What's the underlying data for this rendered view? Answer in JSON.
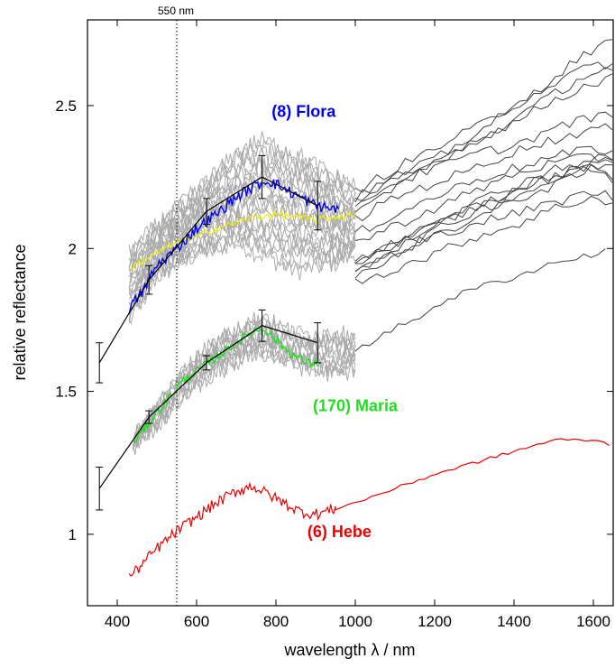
{
  "chart_data": {
    "type": "line",
    "xlabel": "wavelength λ / nm",
    "ylabel": "relative reflectance",
    "xlim": [
      325,
      1650
    ],
    "ylim": [
      0.75,
      2.8
    ],
    "xticks": [
      {
        "value": 400,
        "label": "400"
      },
      {
        "value": 600,
        "label": "600"
      },
      {
        "value": 800,
        "label": "800"
      },
      {
        "value": 1000,
        "label": "1000"
      },
      {
        "value": 1200,
        "label": "1200"
      },
      {
        "value": 1400,
        "label": "1400"
      },
      {
        "value": 1600,
        "label": "1600"
      }
    ],
    "yticks": [
      {
        "value": 1,
        "label": "1"
      },
      {
        "value": 1.5,
        "label": "1.5"
      },
      {
        "value": 2,
        "label": "2"
      },
      {
        "value": 2.5,
        "label": "2.5"
      }
    ],
    "reference_line": {
      "x": 550,
      "label": "550 nm"
    },
    "annotations": [
      {
        "text": "(8) Flora",
        "x": 870,
        "y": 2.46,
        "color": "#0000ee"
      },
      {
        "text": "(170) Maria",
        "x": 1000,
        "y": 1.43,
        "color": "#22dd22"
      },
      {
        "text": "(6) Hebe",
        "x": 960,
        "y": 0.99,
        "color": "#ee0000"
      }
    ],
    "colors": {
      "flora": "#0000ee",
      "maria": "#22dd22",
      "hebe": "#ee0000",
      "yellow": "#eeee00",
      "family": "#aaaaaa",
      "nir": "#444444",
      "photometry": "#000000"
    },
    "flora_family_band": {
      "x": [
        430,
        500,
        600,
        700,
        760,
        850,
        950,
        1000
      ],
      "low": [
        1.74,
        1.9,
        1.98,
        2.02,
        1.98,
        1.92,
        1.95,
        1.98
      ],
      "high": [
        1.98,
        2.08,
        2.2,
        2.33,
        2.38,
        2.33,
        2.25,
        2.22
      ]
    },
    "maria_family_band": {
      "x": [
        440,
        500,
        600,
        700,
        760,
        850,
        950,
        1000
      ],
      "low": [
        1.3,
        1.38,
        1.52,
        1.6,
        1.64,
        1.59,
        1.56,
        1.58
      ],
      "high": [
        1.34,
        1.45,
        1.63,
        1.72,
        1.76,
        1.7,
        1.7,
        1.69
      ]
    },
    "flora_photometry": [
      {
        "x": 355,
        "y": 1.6,
        "err": 0.07
      },
      {
        "x": 480,
        "y": 1.89,
        "err": 0.05
      },
      {
        "x": 625,
        "y": 2.13,
        "err": 0.045
      },
      {
        "x": 765,
        "y": 2.25,
        "err": 0.075
      },
      {
        "x": 905,
        "y": 2.15,
        "err": 0.085
      }
    ],
    "maria_photometry": [
      {
        "x": 355,
        "y": 1.16,
        "err": 0.075
      },
      {
        "x": 480,
        "y": 1.41,
        "err": 0.022
      },
      {
        "x": 625,
        "y": 1.6,
        "err": 0.025
      },
      {
        "x": 765,
        "y": 1.73,
        "err": 0.055
      },
      {
        "x": 905,
        "y": 1.67,
        "err": 0.07
      }
    ],
    "flora_spectrum": {
      "x": [
        430,
        460,
        500,
        550,
        600,
        650,
        700,
        750,
        780,
        820,
        860,
        900,
        940,
        960
      ],
      "y": [
        1.79,
        1.84,
        1.94,
        2.0,
        2.07,
        2.12,
        2.18,
        2.22,
        2.24,
        2.21,
        2.18,
        2.15,
        2.14,
        2.14
      ]
    },
    "yellow_spectrum": {
      "x": [
        430,
        480,
        550,
        600,
        650,
        700,
        750,
        800,
        850,
        900,
        950,
        1000
      ],
      "y": [
        1.93,
        1.97,
        2.02,
        2.04,
        2.07,
        2.09,
        2.11,
        2.12,
        2.11,
        2.1,
        2.11,
        2.12
      ]
    },
    "maria_spectrum": {
      "x": [
        440,
        480,
        520,
        560,
        600,
        650,
        700,
        740,
        770,
        800,
        840,
        880,
        910
      ],
      "y": [
        1.32,
        1.39,
        1.46,
        1.53,
        1.57,
        1.62,
        1.67,
        1.71,
        1.72,
        1.68,
        1.63,
        1.6,
        1.6
      ]
    },
    "hebe_spectrum": {
      "x": [
        430,
        460,
        500,
        550,
        600,
        650,
        700,
        740,
        780,
        820,
        860,
        900,
        950,
        1000,
        1100,
        1200,
        1300,
        1400,
        1500,
        1600,
        1650
      ],
      "y": [
        0.85,
        0.89,
        0.95,
        1.01,
        1.06,
        1.11,
        1.15,
        1.17,
        1.14,
        1.11,
        1.08,
        1.07,
        1.09,
        1.11,
        1.16,
        1.21,
        1.25,
        1.29,
        1.33,
        1.33,
        1.31
      ]
    },
    "maria_nir": {
      "x": [
        1000,
        1050,
        1100,
        1150,
        1200,
        1300,
        1400,
        1500,
        1600,
        1640
      ],
      "y": [
        1.65,
        1.68,
        1.72,
        1.75,
        1.8,
        1.86,
        1.9,
        1.95,
        1.98,
        1.99
      ]
    },
    "flora_nir": [
      {
        "x": [
          1000,
          1100,
          1200,
          1300,
          1400,
          1500,
          1600,
          1650
        ],
        "y": [
          2.18,
          2.25,
          2.31,
          2.4,
          2.49,
          2.6,
          2.7,
          2.72
        ]
      },
      {
        "x": [
          1000,
          1100,
          1200,
          1300,
          1400,
          1500,
          1600,
          1650
        ],
        "y": [
          2.2,
          2.28,
          2.35,
          2.42,
          2.5,
          2.58,
          2.64,
          2.65
        ]
      },
      {
        "x": [
          1000,
          1100,
          1200,
          1300,
          1400,
          1500,
          1600,
          1650
        ],
        "y": [
          2.12,
          2.22,
          2.3,
          2.37,
          2.45,
          2.54,
          2.62,
          2.63
        ]
      },
      {
        "x": [
          1000,
          1100,
          1200,
          1300,
          1400,
          1500,
          1600,
          1650
        ],
        "y": [
          2.14,
          2.24,
          2.3,
          2.38,
          2.44,
          2.52,
          2.58,
          2.6
        ]
      },
      {
        "x": [
          1000,
          1100,
          1200,
          1300,
          1400,
          1500,
          1600,
          1650
        ],
        "y": [
          2.16,
          2.23,
          2.28,
          2.33,
          2.36,
          2.42,
          2.46,
          2.47
        ]
      },
      {
        "x": [
          1000,
          1100,
          1200,
          1300,
          1400,
          1500,
          1600,
          1650
        ],
        "y": [
          2.1,
          2.18,
          2.23,
          2.28,
          2.34,
          2.38,
          2.42,
          2.42
        ]
      },
      {
        "x": [
          1000,
          1100,
          1200,
          1300,
          1400,
          1500,
          1600,
          1650
        ],
        "y": [
          2.05,
          2.12,
          2.18,
          2.24,
          2.28,
          2.32,
          2.35,
          2.34
        ]
      },
      {
        "x": [
          1000,
          1100,
          1200,
          1300,
          1400,
          1500,
          1600,
          1650
        ],
        "y": [
          2.02,
          2.08,
          2.14,
          2.2,
          2.26,
          2.3,
          2.32,
          2.31
        ]
      },
      {
        "x": [
          1000,
          1100,
          1200,
          1300,
          1400,
          1500,
          1600,
          1650
        ],
        "y": [
          1.96,
          2.02,
          2.08,
          2.14,
          2.2,
          2.25,
          2.3,
          2.32
        ]
      },
      {
        "x": [
          1000,
          1100,
          1200,
          1300,
          1400,
          1500,
          1600,
          1650
        ],
        "y": [
          1.92,
          1.98,
          2.05,
          2.1,
          2.17,
          2.22,
          2.28,
          2.25
        ]
      },
      {
        "x": [
          1000,
          1100,
          1200,
          1300,
          1400,
          1500,
          1600,
          1650
        ],
        "y": [
          1.93,
          2.0,
          2.06,
          2.13,
          2.18,
          2.24,
          2.28,
          2.24
        ]
      },
      {
        "x": [
          1000,
          1100,
          1200,
          1300,
          1400,
          1500,
          1600,
          1650
        ],
        "y": [
          1.95,
          2.03,
          2.1,
          2.16,
          2.22,
          2.28,
          2.31,
          2.32
        ]
      },
      {
        "x": [
          1000,
          1100,
          1200,
          1300,
          1400,
          1500,
          1600,
          1650
        ],
        "y": [
          1.9,
          1.97,
          2.04,
          2.09,
          2.12,
          2.16,
          2.2,
          2.18
        ]
      },
      {
        "x": [
          1000,
          1100,
          1200,
          1300,
          1400,
          1500,
          1600,
          1650
        ],
        "y": [
          1.88,
          1.93,
          1.98,
          2.04,
          2.08,
          2.14,
          2.18,
          2.16
        ]
      },
      {
        "x": [
          1000,
          1100,
          1200,
          1300,
          1400,
          1500,
          1600,
          1650
        ],
        "y": [
          1.94,
          2.01,
          2.08,
          2.15,
          2.2,
          2.26,
          2.28,
          2.3
        ]
      }
    ]
  }
}
